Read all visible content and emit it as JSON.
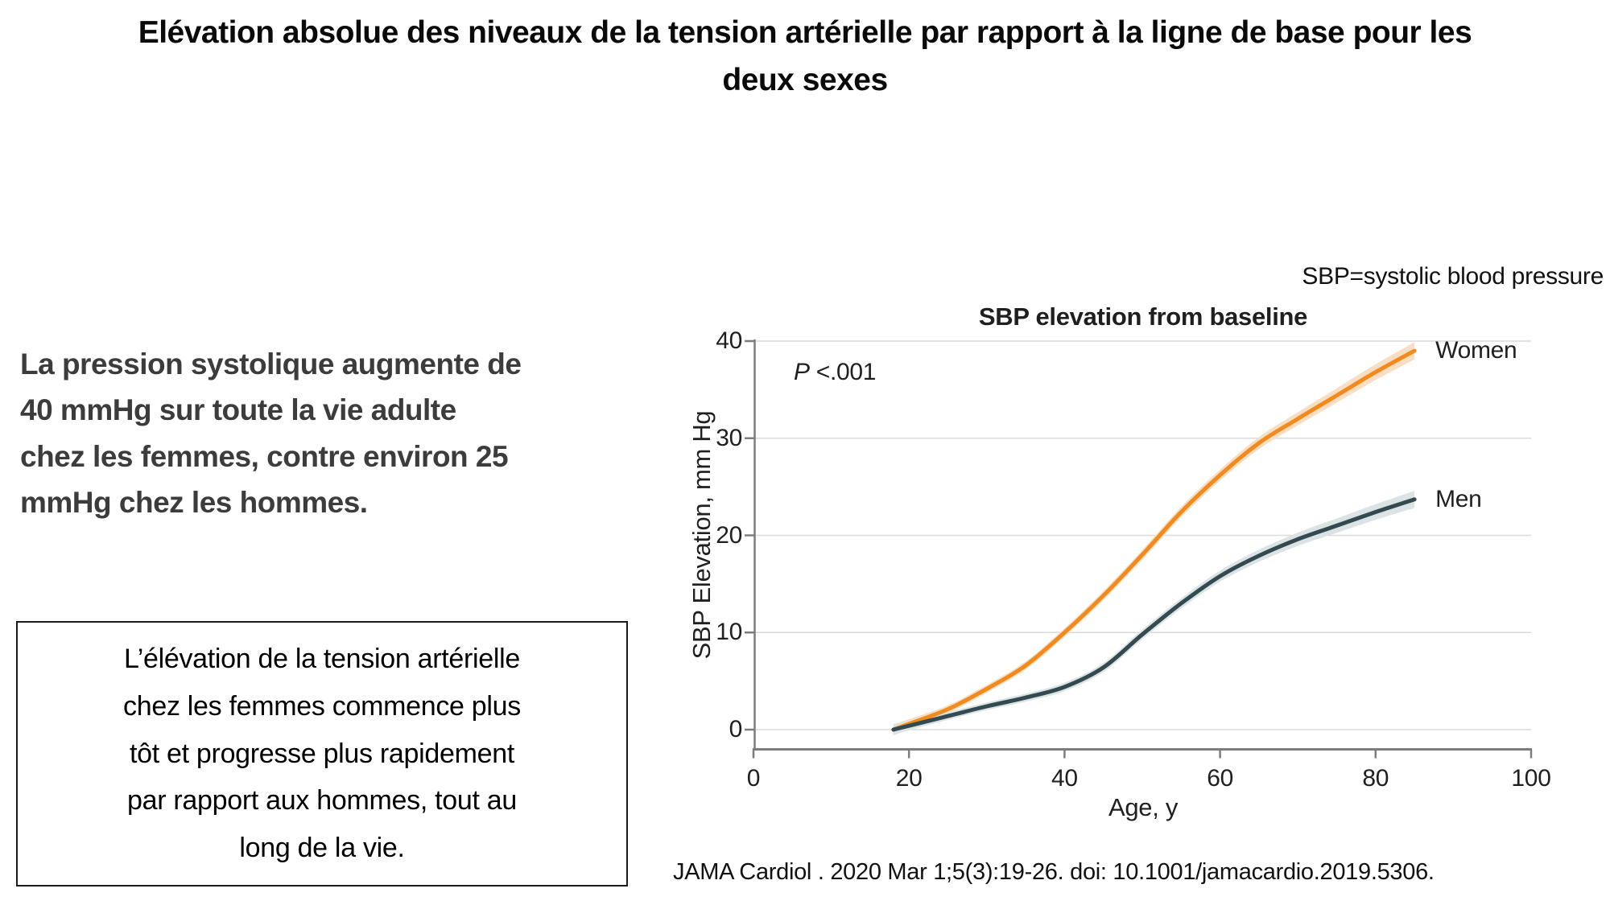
{
  "slide": {
    "title_lines": [
      "Elévation absolue des niveaux de la tension artérielle par rapport à la ligne de base pour les",
      "deux sexes"
    ],
    "abbreviation_note": "SBP=systolic blood pressure",
    "highlight_lines": [
      "La pression systolique augmente de",
      "40 mmHg sur toute la vie adulte",
      "chez les femmes, contre environ 25",
      "mmHg chez les hommes."
    ],
    "boxed_lines": [
      "L’élévation de la tension artérielle",
      "chez les femmes commence plus",
      "tôt et progresse plus rapidement",
      "par rapport aux hommes, tout au",
      "long de la vie."
    ],
    "citation": "JAMA Cardiol . 2020 Mar 1;5(3):19-26. doi: 10.1001/jamacardio.2019.5306."
  },
  "chart_data": {
    "type": "line",
    "title": "SBP elevation from baseline",
    "xlabel": "Age, y",
    "ylabel": "SBP Elevation, mm Hg",
    "annotation_p": "P",
    "annotation_value": "<.001",
    "xlim": [
      0,
      100
    ],
    "ylim": [
      0,
      40
    ],
    "xticks": [
      0,
      20,
      40,
      60,
      80,
      100
    ],
    "yticks": [
      0,
      10,
      20,
      30,
      40
    ],
    "grid": "horizontal",
    "x": [
      18,
      20,
      25,
      30,
      35,
      40,
      45,
      50,
      55,
      60,
      65,
      70,
      75,
      80,
      85
    ],
    "series": [
      {
        "name": "Women",
        "color": "#f28a1d",
        "band_color": "#f8dfc4",
        "values": [
          0,
          0.6,
          2.1,
          4.2,
          6.6,
          10,
          13.8,
          18,
          22.4,
          26.2,
          29.5,
          32,
          34.4,
          36.8,
          39
        ]
      },
      {
        "name": "Men",
        "color": "#334a50",
        "band_color": "#dce3e5",
        "values": [
          0,
          0.4,
          1.4,
          2.4,
          3.3,
          4.4,
          6.4,
          9.8,
          13,
          15.8,
          17.9,
          19.6,
          21,
          22.4,
          23.7
        ]
      }
    ],
    "colors": {
      "gridline": "#dadada",
      "axis": "#7d7d7d",
      "text": "#1f1f1f"
    }
  }
}
